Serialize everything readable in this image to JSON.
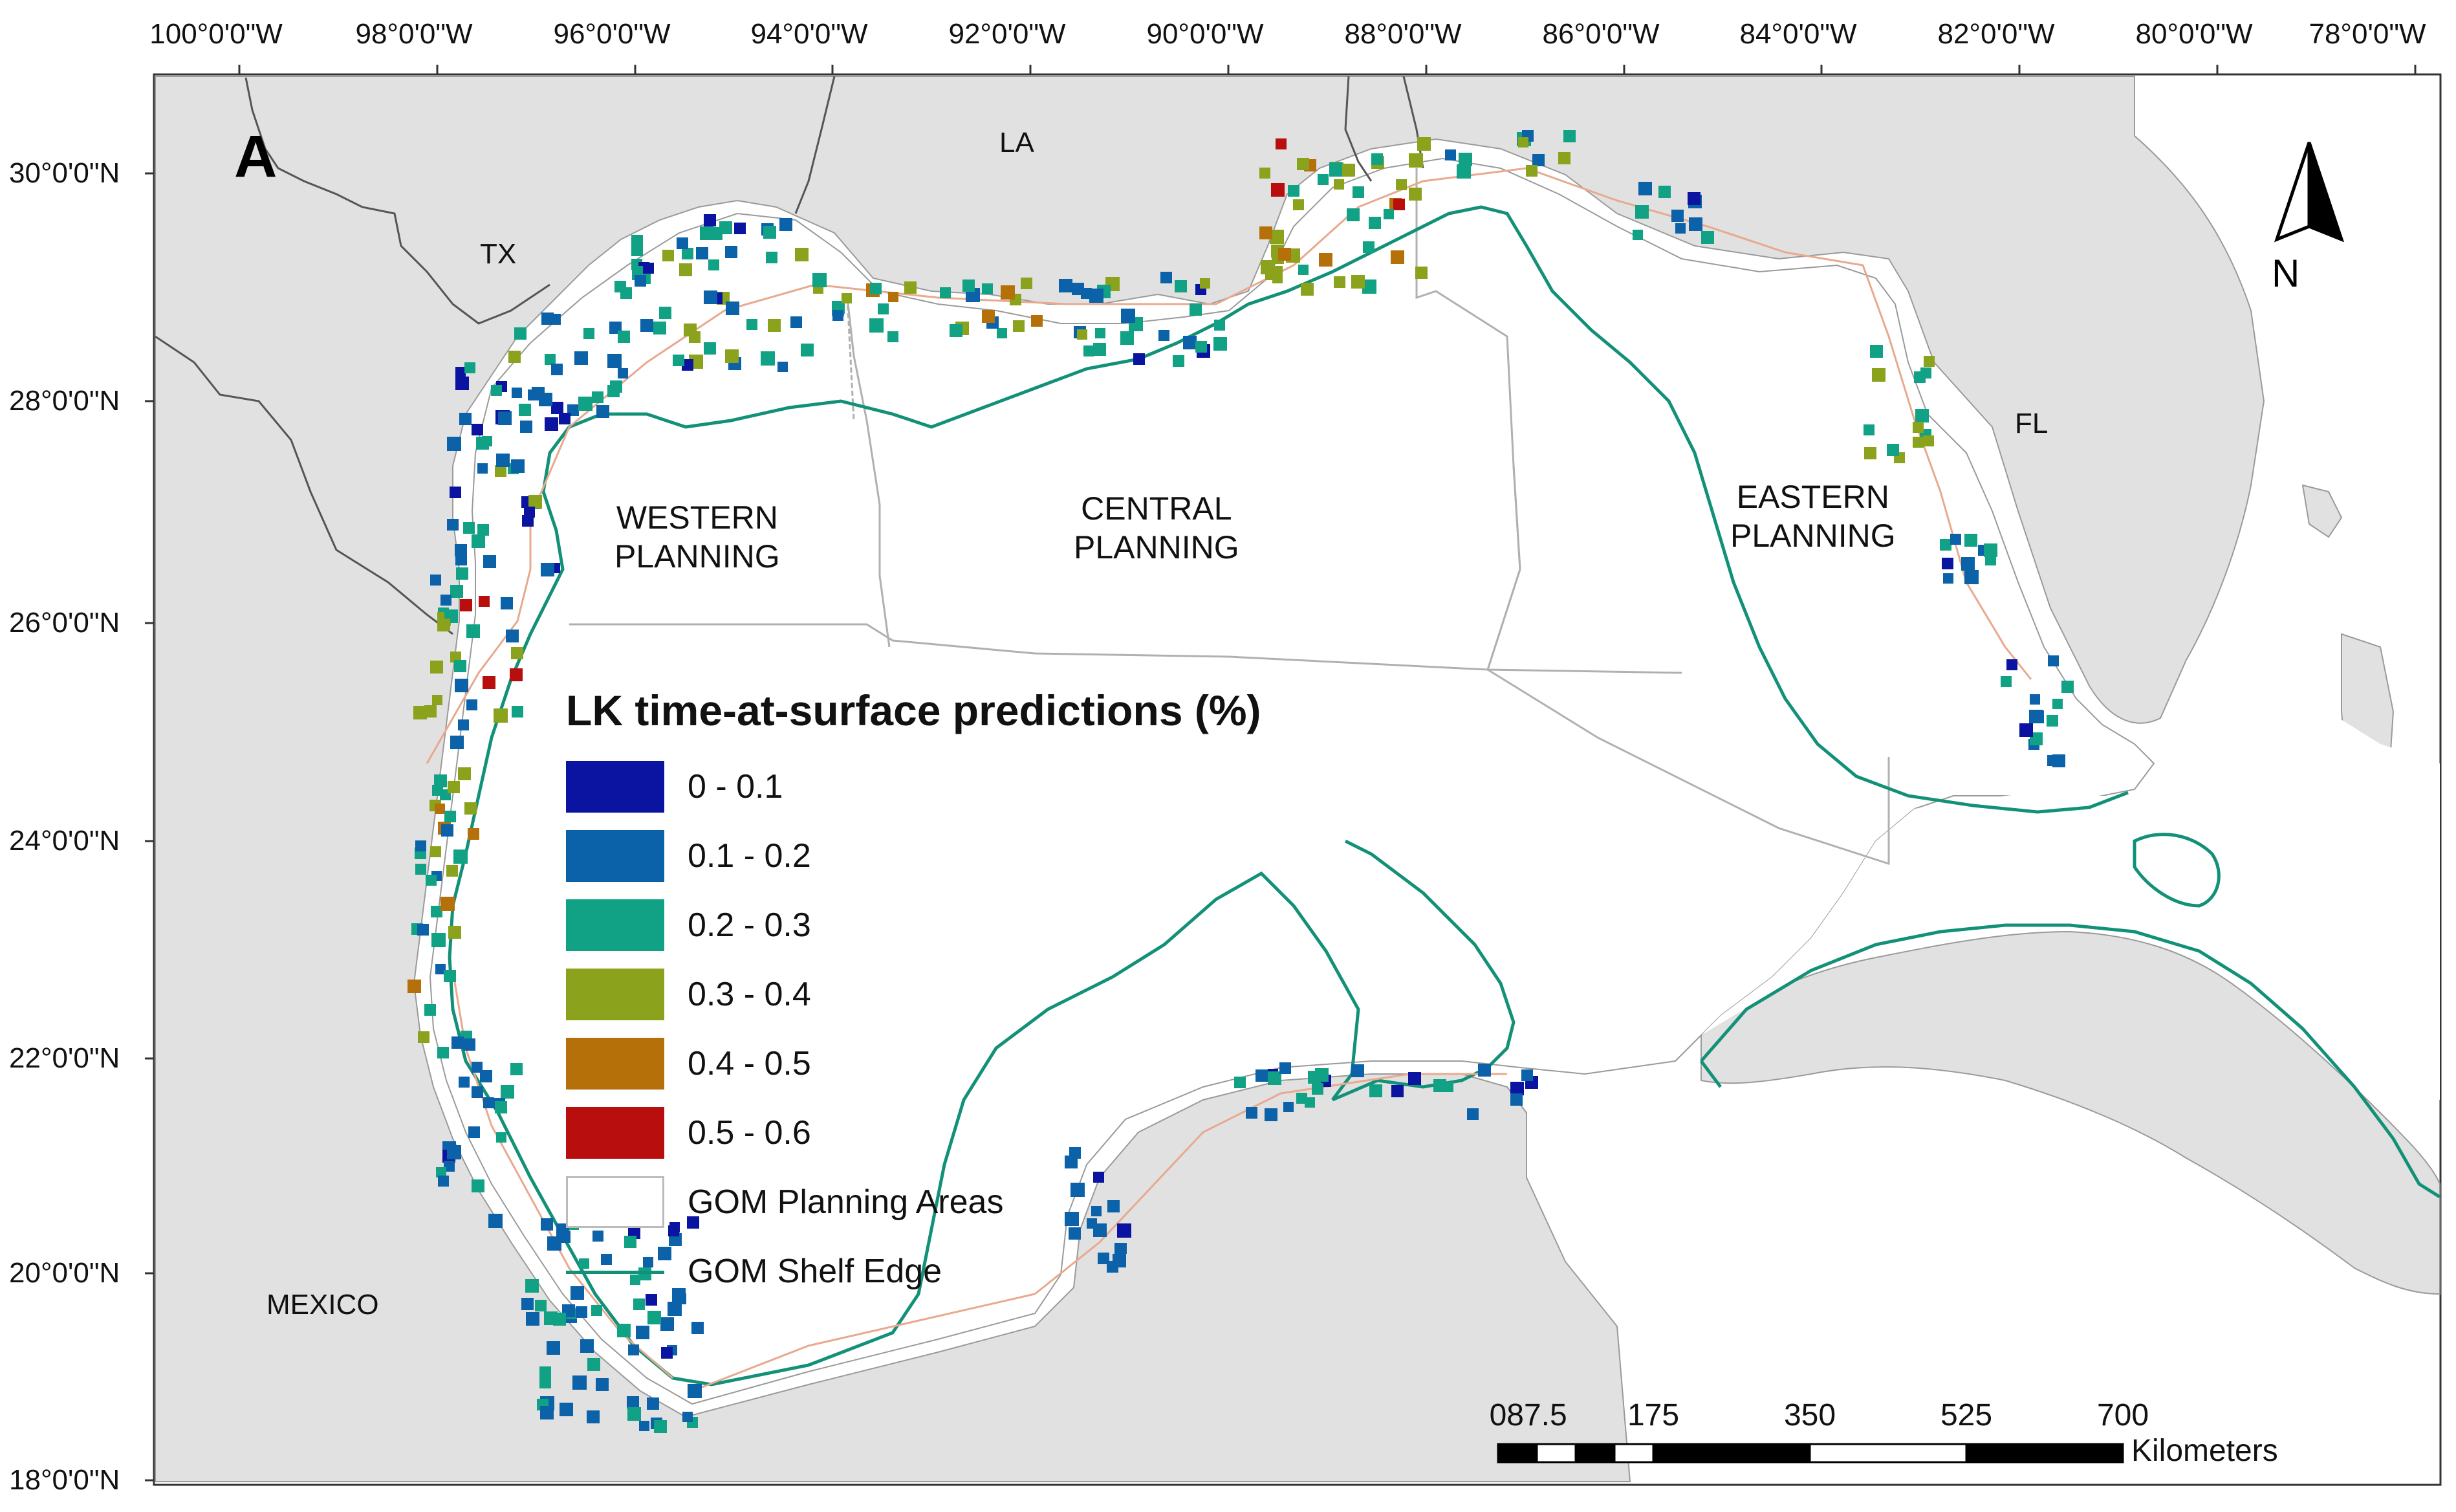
{
  "panel_label": "A",
  "north_arrow_label": "N",
  "longitude_labels": [
    "100°0'0\"W",
    "98°0'0\"W",
    "96°0'0\"W",
    "94°0'0\"W",
    "92°0'0\"W",
    "90°0'0\"W",
    "88°0'0\"W",
    "86°0'0\"W",
    "84°0'0\"W",
    "82°0'0\"W",
    "80°0'0\"W",
    "78°0'0\"W"
  ],
  "latitude_labels": [
    "30°0'0\"N",
    "28°0'0\"N",
    "26°0'0\"N",
    "24°0'0\"N",
    "22°0'0\"N",
    "20°0'0\"N",
    "18°0'0\"N"
  ],
  "places": {
    "tx": "TX",
    "la": "LA",
    "fl": "FL",
    "mexico": "MEXICO"
  },
  "planning_areas": {
    "western": [
      "WESTERN",
      "PLANNING"
    ],
    "central": [
      "CENTRAL",
      "PLANNING"
    ],
    "eastern": [
      "EASTERN",
      "PLANNING"
    ]
  },
  "legend": {
    "title": "LK time-at-surface predictions (%)",
    "classes": [
      {
        "label": "0 - 0.1",
        "color": "#0a14a0"
      },
      {
        "label": "0.1 - 0.2",
        "color": "#0b62a8"
      },
      {
        "label": "0.2 - 0.3",
        "color": "#11a285"
      },
      {
        "label": "0.3 - 0.4",
        "color": "#8aa21c"
      },
      {
        "label": "0.4 - 0.5",
        "color": "#b5700a"
      },
      {
        "label": "0.5 - 0.6",
        "color": "#b80e0e"
      }
    ],
    "planning_areas_label": "GOM Planning Areas",
    "shelf_edge_label": "GOM Shelf Edge",
    "shelf_edge_color": "#129178"
  },
  "scale_bar": {
    "labels": [
      "0",
      "87.5",
      "175",
      "350",
      "525",
      "700"
    ],
    "unit": "Kilometers"
  },
  "colors": {
    "land": "#e1e1e1",
    "water": "#ffffff",
    "track": "#e8a98e"
  }
}
